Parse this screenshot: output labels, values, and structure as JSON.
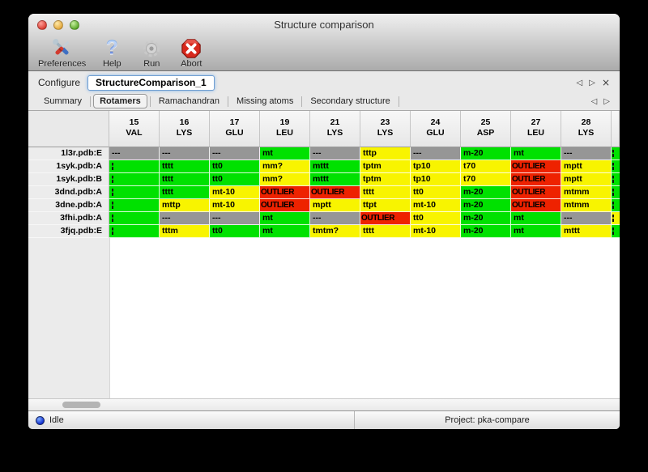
{
  "window": {
    "title": "Structure comparison"
  },
  "toolbar": {
    "items": [
      {
        "label": "Preferences",
        "icon": "tools-icon"
      },
      {
        "label": "Help",
        "icon": "help-icon"
      },
      {
        "label": "Run",
        "icon": "gear-icon"
      },
      {
        "label": "Abort",
        "icon": "abort-icon"
      }
    ]
  },
  "configure": {
    "label": "Configure",
    "value": "StructureComparison_1",
    "nav": {
      "prev": "◁",
      "next": "▷",
      "close": "×"
    }
  },
  "tabs": {
    "items": [
      "Summary",
      "Rotamers",
      "Ramachandran",
      "Missing atoms",
      "Secondary structure"
    ],
    "selected": "Rotamers",
    "nav": {
      "prev": "◁",
      "next": "▷"
    }
  },
  "colors": {
    "green": "#00e100",
    "yellow": "#f8f400",
    "red": "#ee2200",
    "gray": "#969696"
  },
  "table": {
    "columns": [
      {
        "num": "15",
        "res": "VAL"
      },
      {
        "num": "16",
        "res": "LYS"
      },
      {
        "num": "17",
        "res": "GLU"
      },
      {
        "num": "19",
        "res": "LEU"
      },
      {
        "num": "21",
        "res": "LYS"
      },
      {
        "num": "23",
        "res": "LYS"
      },
      {
        "num": "24",
        "res": "GLU"
      },
      {
        "num": "25",
        "res": "ASP"
      },
      {
        "num": "27",
        "res": "LEU"
      },
      {
        "num": "28",
        "res": "LYS"
      }
    ],
    "rows": [
      {
        "name": "1l3r.pdb:E",
        "extra": "green",
        "cells": [
          {
            "t": "---",
            "c": "gray"
          },
          {
            "t": "---",
            "c": "gray"
          },
          {
            "t": "---",
            "c": "gray"
          },
          {
            "t": "mt",
            "c": "green"
          },
          {
            "t": "---",
            "c": "gray"
          },
          {
            "t": "tttp",
            "c": "yellow"
          },
          {
            "t": "---",
            "c": "gray"
          },
          {
            "t": "m-20",
            "c": "green"
          },
          {
            "t": "mt",
            "c": "green"
          },
          {
            "t": "---",
            "c": "gray"
          }
        ]
      },
      {
        "name": "1syk.pdb:A",
        "extra": "green",
        "cells": [
          {
            "t": "",
            "c": "green",
            "clip": true
          },
          {
            "t": "tttt",
            "c": "green"
          },
          {
            "t": "tt0",
            "c": "green"
          },
          {
            "t": "mm?",
            "c": "yellow"
          },
          {
            "t": "mttt",
            "c": "green"
          },
          {
            "t": "tptm",
            "c": "yellow"
          },
          {
            "t": "tp10",
            "c": "yellow"
          },
          {
            "t": "t70",
            "c": "yellow"
          },
          {
            "t": "OUTLIER",
            "c": "red"
          },
          {
            "t": "mptt",
            "c": "yellow"
          }
        ]
      },
      {
        "name": "1syk.pdb:B",
        "extra": "green",
        "cells": [
          {
            "t": "",
            "c": "green",
            "clip": true
          },
          {
            "t": "tttt",
            "c": "green"
          },
          {
            "t": "tt0",
            "c": "green"
          },
          {
            "t": "mm?",
            "c": "yellow"
          },
          {
            "t": "mttt",
            "c": "green"
          },
          {
            "t": "tptm",
            "c": "yellow"
          },
          {
            "t": "tp10",
            "c": "yellow"
          },
          {
            "t": "t70",
            "c": "yellow"
          },
          {
            "t": "OUTLIER",
            "c": "red"
          },
          {
            "t": "mptt",
            "c": "yellow"
          }
        ]
      },
      {
        "name": "3dnd.pdb:A",
        "extra": "green",
        "cells": [
          {
            "t": "",
            "c": "green",
            "clip": true
          },
          {
            "t": "tttt",
            "c": "green"
          },
          {
            "t": "mt-10",
            "c": "yellow"
          },
          {
            "t": "OUTLIER",
            "c": "red"
          },
          {
            "t": "OUTLIER",
            "c": "red"
          },
          {
            "t": "tttt",
            "c": "yellow"
          },
          {
            "t": "tt0",
            "c": "yellow"
          },
          {
            "t": "m-20",
            "c": "green"
          },
          {
            "t": "OUTLIER",
            "c": "red"
          },
          {
            "t": "mtmm",
            "c": "yellow"
          }
        ]
      },
      {
        "name": "3dne.pdb:A",
        "extra": "green",
        "cells": [
          {
            "t": "",
            "c": "green",
            "clip": true
          },
          {
            "t": "mttp",
            "c": "yellow"
          },
          {
            "t": "mt-10",
            "c": "yellow"
          },
          {
            "t": "OUTLIER",
            "c": "red"
          },
          {
            "t": "mptt",
            "c": "yellow"
          },
          {
            "t": "ttpt",
            "c": "yellow"
          },
          {
            "t": "mt-10",
            "c": "yellow"
          },
          {
            "t": "m-20",
            "c": "green"
          },
          {
            "t": "OUTLIER",
            "c": "red"
          },
          {
            "t": "mtmm",
            "c": "yellow"
          }
        ]
      },
      {
        "name": "3fhi.pdb:A",
        "extra": "yellow",
        "cells": [
          {
            "t": "",
            "c": "green",
            "clip": true
          },
          {
            "t": "---",
            "c": "gray"
          },
          {
            "t": "---",
            "c": "gray"
          },
          {
            "t": "mt",
            "c": "green"
          },
          {
            "t": "---",
            "c": "gray"
          },
          {
            "t": "OUTLIER",
            "c": "red"
          },
          {
            "t": "tt0",
            "c": "yellow"
          },
          {
            "t": "m-20",
            "c": "green"
          },
          {
            "t": "mt",
            "c": "green"
          },
          {
            "t": "---",
            "c": "gray"
          }
        ]
      },
      {
        "name": "3fjq.pdb:E",
        "extra": "green",
        "cells": [
          {
            "t": "",
            "c": "green",
            "clip": true
          },
          {
            "t": "tttm",
            "c": "yellow"
          },
          {
            "t": "tt0",
            "c": "green"
          },
          {
            "t": "mt",
            "c": "green"
          },
          {
            "t": "tmtm?",
            "c": "yellow"
          },
          {
            "t": "tttt",
            "c": "yellow"
          },
          {
            "t": "mt-10",
            "c": "yellow"
          },
          {
            "t": "m-20",
            "c": "green"
          },
          {
            "t": "mt",
            "c": "green"
          },
          {
            "t": "mttt",
            "c": "yellow"
          }
        ]
      }
    ]
  },
  "statusbar": {
    "status": "Idle",
    "project": "Project: pka-compare"
  }
}
